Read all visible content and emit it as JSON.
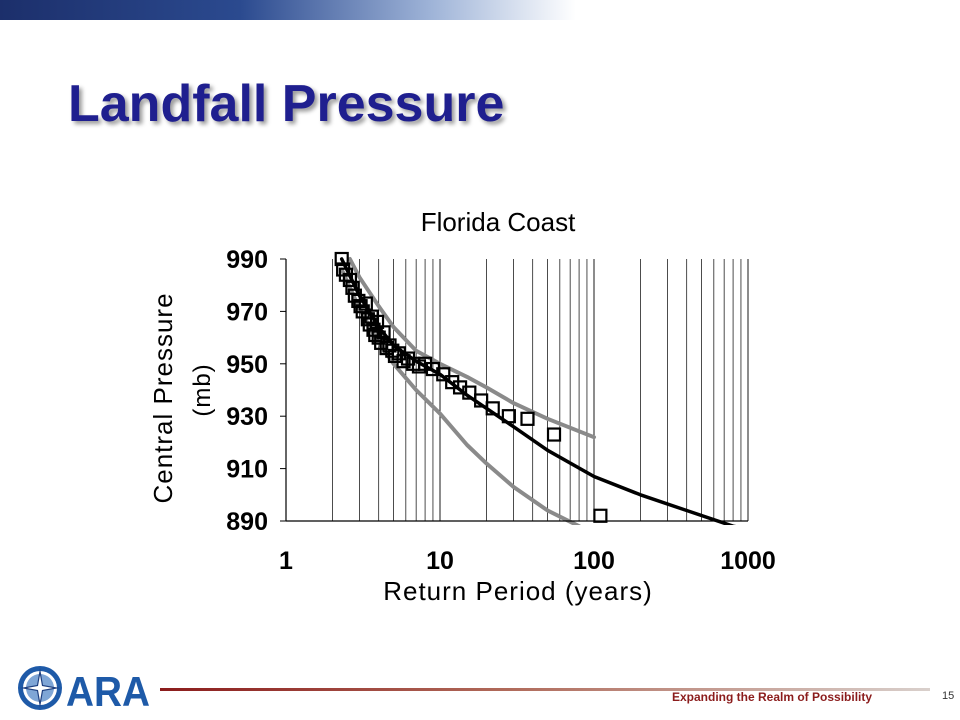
{
  "slide": {
    "title": "Landfall Pressure",
    "tagline": "Expanding the Realm of Possibility",
    "page_number": "15",
    "logo_text": "ARA"
  },
  "colors": {
    "title": "#1f1f8f",
    "banner_dark": "#1c2f6b",
    "footer_rule": "#8b1c1c",
    "mean_curve": "#000000",
    "confidence_curve": "#8a8a8a"
  },
  "chart_data": {
    "type": "scatter",
    "title": "Florida Coast",
    "xlabel": "Return Period (years)",
    "ylabel_line1": "Central Pressure",
    "ylabel_line2": "(mb)",
    "x_scale": "log",
    "xlim": [
      1,
      1000
    ],
    "ylim": [
      890,
      990
    ],
    "x_ticks": [
      1,
      10,
      100,
      1000
    ],
    "x_tick_labels": [
      "1",
      "10",
      "100",
      "1000"
    ],
    "y_ticks": [
      990,
      970,
      950,
      930,
      910,
      890
    ],
    "y_tick_labels": [
      "990",
      "970",
      "950",
      "930",
      "910",
      "890"
    ],
    "grid": "vertical log gridlines",
    "series": [
      {
        "role": "observed",
        "marker": "open-square",
        "x": [
          2.3,
          2.35,
          2.45,
          2.6,
          2.7,
          2.8,
          2.95,
          3.05,
          3.15,
          3.3,
          3.4,
          3.5,
          3.6,
          3.7,
          3.8,
          3.9,
          4.0,
          4.15,
          4.3,
          4.5,
          4.7,
          4.9,
          5.1,
          5.4,
          5.8,
          6.2,
          6.7,
          7.3,
          8.0,
          9.0,
          10.5,
          12.0,
          13.5,
          15.5,
          18.5,
          22,
          28,
          37,
          55,
          110
        ],
        "y": [
          990,
          986,
          984,
          982,
          979,
          976,
          974,
          972,
          970,
          973,
          967,
          965,
          968,
          963,
          961,
          966,
          960,
          958,
          962,
          956,
          957,
          955,
          953,
          954,
          951,
          952,
          950,
          949,
          950,
          948,
          946,
          943,
          941,
          939,
          936,
          933,
          930,
          929,
          923,
          892
        ]
      },
      {
        "role": "mean",
        "style": "line",
        "x": [
          2.3,
          3,
          4,
          5,
          7,
          10,
          15,
          20,
          30,
          50,
          100,
          200,
          400,
          800,
          1000
        ],
        "y": [
          990,
          976,
          964,
          957,
          951,
          946,
          938,
          933,
          926,
          917,
          907,
          900,
          894,
          888,
          887
        ]
      },
      {
        "role": "upper-confidence",
        "style": "line",
        "x": [
          2.6,
          3,
          4,
          5,
          7,
          10,
          15,
          20,
          30,
          50,
          100
        ],
        "y": [
          990,
          983,
          972,
          964,
          955,
          950,
          945,
          941,
          935,
          929,
          922
        ]
      },
      {
        "role": "lower-confidence",
        "style": "line",
        "x": [
          2.3,
          3,
          4,
          5,
          7,
          10,
          15,
          20,
          30,
          50,
          80
        ],
        "y": [
          986,
          971,
          958,
          950,
          940,
          931,
          919,
          912,
          903,
          894,
          888
        ]
      }
    ]
  }
}
